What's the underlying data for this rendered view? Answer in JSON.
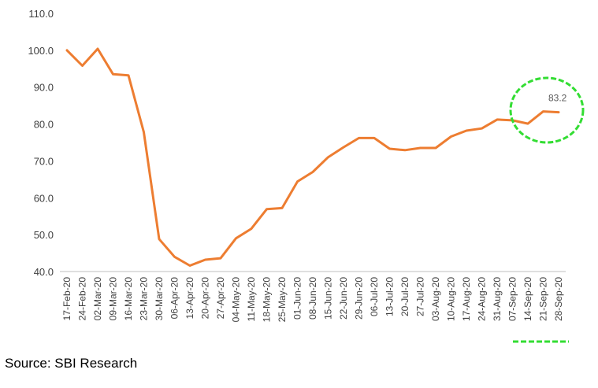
{
  "chart_data": {
    "type": "line",
    "title": "",
    "xlabel": "",
    "ylabel": "",
    "ylim": [
      40.0,
      110.0
    ],
    "yticks": [
      "40.0",
      "50.0",
      "60.0",
      "70.0",
      "80.0",
      "90.0",
      "100.0",
      "110.0"
    ],
    "grid": false,
    "legend": "none",
    "series_color": "#ED7D31",
    "highlight_color": "#33DD33",
    "x": [
      "17-Feb-20",
      "24-Feb-20",
      "02-Mar-20",
      "09-Mar-20",
      "16-Mar-20",
      "23-Mar-20",
      "30-Mar-20",
      "06-Apr-20",
      "13-Apr-20",
      "20-Apr-20",
      "27-Apr-20",
      "04-May-20",
      "11-May-20",
      "18-May-20",
      "25-May-20",
      "01-Jun-20",
      "08-Jun-20",
      "15-Jun-20",
      "22-Jun-20",
      "29-Jun-20",
      "06-Jul-20",
      "13-Jul-20",
      "20-Jul-20",
      "27-Jul-20",
      "03-Aug-20",
      "10-Aug-20",
      "17-Aug-20",
      "24-Aug-20",
      "31-Aug-20",
      "07-Sep-20",
      "14-Sep-20",
      "21-Sep-20",
      "28-Sep-20"
    ],
    "series": [
      {
        "values": [
          100.0,
          95.8,
          100.4,
          93.5,
          93.2,
          77.8,
          48.8,
          44.0,
          41.6,
          43.2,
          43.6,
          49.0,
          51.6,
          56.9,
          57.2,
          64.4,
          67.0,
          71.0,
          73.7,
          76.2,
          76.2,
          73.3,
          72.9,
          73.5,
          73.5,
          76.6,
          78.2,
          78.8,
          81.2,
          81.0,
          80.1,
          83.4,
          83.2
        ]
      }
    ],
    "annotations": [
      {
        "label": "83.2",
        "target": "28-Sep-20"
      }
    ]
  },
  "source": "Source: SBI Research"
}
